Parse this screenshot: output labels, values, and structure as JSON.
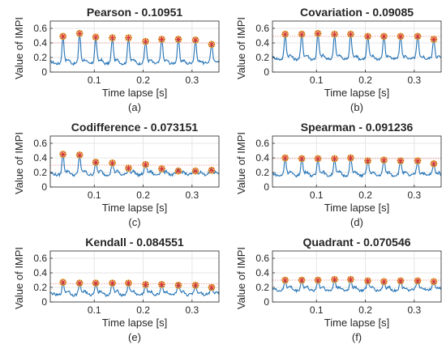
{
  "figure": {
    "colors": {
      "signal": "#2272b5",
      "peak_red": "#d9342b",
      "peak_yellow": "#e0b43a",
      "threshold": "#f2a2a2",
      "grid": "#e6e6e6",
      "axis": "#262626"
    }
  },
  "chart_data": [
    {
      "type": "line",
      "panel_label": "(a)",
      "title": "Pearson - 0.10951",
      "xlabel": "Time lapse [s]",
      "ylabel": "Value of IMPI",
      "xlim": [
        0.01,
        0.355
      ],
      "ylim": [
        0,
        0.7
      ],
      "grid": true,
      "xticks": [
        0.1,
        0.2,
        0.3
      ],
      "xtick_labels": [
        "0.1",
        "0.2",
        "0.3"
      ],
      "yticks": [
        0,
        0.2,
        0.4,
        0.6
      ],
      "ytick_labels": [
        "0",
        "0.2",
        "0.4",
        "0.6"
      ],
      "baseline": 0.13,
      "threshold": 0.4,
      "peaks": {
        "x": [
          0.036,
          0.07,
          0.103,
          0.137,
          0.17,
          0.205,
          0.238,
          0.272,
          0.307,
          0.34
        ],
        "y": [
          0.49,
          0.53,
          0.48,
          0.47,
          0.47,
          0.42,
          0.45,
          0.45,
          0.44,
          0.38
        ]
      }
    },
    {
      "type": "line",
      "panel_label": "(b)",
      "title": "Covariation - 0.09085",
      "xlabel": "Time lapse [s]",
      "ylabel": "Value of IMPI",
      "xlim": [
        0.01,
        0.355
      ],
      "ylim": [
        0,
        0.7
      ],
      "grid": true,
      "xticks": [
        0.1,
        0.2,
        0.3
      ],
      "xtick_labels": [
        "0.1",
        "0.2",
        "0.3"
      ],
      "yticks": [
        0,
        0.2,
        0.4,
        0.6
      ],
      "ytick_labels": [
        "0",
        "0.2",
        "0.4",
        "0.6"
      ],
      "baseline": 0.19,
      "threshold": 0.49,
      "peaks": {
        "x": [
          0.036,
          0.07,
          0.103,
          0.137,
          0.17,
          0.205,
          0.238,
          0.272,
          0.307,
          0.34
        ],
        "y": [
          0.52,
          0.52,
          0.53,
          0.52,
          0.52,
          0.49,
          0.49,
          0.49,
          0.49,
          0.45
        ]
      }
    },
    {
      "type": "line",
      "panel_label": "(c)",
      "title": "Codifference - 0.073151",
      "xlabel": "Time lapse [s]",
      "ylabel": "Value of IMPI",
      "xlim": [
        0.01,
        0.355
      ],
      "ylim": [
        0,
        0.7
      ],
      "grid": true,
      "xticks": [
        0.1,
        0.2,
        0.3
      ],
      "xtick_labels": [
        "0.1",
        "0.2",
        "0.3"
      ],
      "yticks": [
        0,
        0.2,
        0.4,
        0.6
      ],
      "ytick_labels": [
        "0",
        "0.2",
        "0.4",
        "0.6"
      ],
      "baseline": 0.18,
      "threshold": 0.3,
      "peaks": {
        "x": [
          0.036,
          0.07,
          0.103,
          0.137,
          0.17,
          0.205,
          0.238,
          0.272,
          0.307,
          0.34
        ],
        "y": [
          0.45,
          0.44,
          0.34,
          0.33,
          0.26,
          0.31,
          0.25,
          0.22,
          0.22,
          0.23
        ]
      }
    },
    {
      "type": "line",
      "panel_label": "(d)",
      "title": "Spearman - 0.091236",
      "xlabel": "Time lapse [s]",
      "ylabel": "Value of IMPI",
      "xlim": [
        0.01,
        0.355
      ],
      "ylim": [
        0,
        0.7
      ],
      "grid": true,
      "xticks": [
        0.1,
        0.2,
        0.3
      ],
      "xtick_labels": [
        "0.1",
        "0.2",
        "0.3"
      ],
      "yticks": [
        0,
        0.2,
        0.4,
        0.6
      ],
      "ytick_labels": [
        "0",
        "0.2",
        "0.4",
        "0.6"
      ],
      "baseline": 0.17,
      "threshold": 0.39,
      "peaks": {
        "x": [
          0.036,
          0.07,
          0.103,
          0.137,
          0.17,
          0.205,
          0.238,
          0.272,
          0.307,
          0.34
        ],
        "y": [
          0.4,
          0.39,
          0.39,
          0.39,
          0.4,
          0.36,
          0.37,
          0.36,
          0.36,
          0.32
        ]
      }
    },
    {
      "type": "line",
      "panel_label": "(e)",
      "title": "Kendall - 0.084551",
      "xlabel": "Time lapse [s]",
      "ylabel": "Value of IMPI",
      "xlim": [
        0.01,
        0.355
      ],
      "ylim": [
        0,
        0.7
      ],
      "grid": true,
      "xticks": [
        0.1,
        0.2,
        0.3
      ],
      "xtick_labels": [
        "0.1",
        "0.2",
        "0.3"
      ],
      "yticks": [
        0,
        0.2,
        0.4,
        0.6
      ],
      "ytick_labels": [
        "0",
        "0.2",
        "0.4",
        "0.6"
      ],
      "baseline": 0.11,
      "threshold": 0.25,
      "peaks": {
        "x": [
          0.036,
          0.07,
          0.103,
          0.137,
          0.17,
          0.205,
          0.238,
          0.272,
          0.307,
          0.34
        ],
        "y": [
          0.27,
          0.26,
          0.26,
          0.26,
          0.26,
          0.24,
          0.24,
          0.23,
          0.23,
          0.2
        ]
      }
    },
    {
      "type": "line",
      "panel_label": "(f)",
      "title": "Quadrant - 0.070546",
      "xlabel": "Time lapse [s]",
      "ylabel": "Value of IMPI",
      "xlim": [
        0.01,
        0.355
      ],
      "ylim": [
        0,
        0.7
      ],
      "grid": true,
      "xticks": [
        0.1,
        0.2,
        0.3
      ],
      "xtick_labels": [
        "0.1",
        "0.2",
        "0.3"
      ],
      "yticks": [
        0,
        0.2,
        0.4,
        0.6
      ],
      "ytick_labels": [
        "0",
        "0.2",
        "0.4",
        "0.6"
      ],
      "baseline": 0.17,
      "threshold": 0.3,
      "peaks": {
        "x": [
          0.036,
          0.07,
          0.103,
          0.137,
          0.17,
          0.205,
          0.238,
          0.272,
          0.307,
          0.34
        ],
        "y": [
          0.3,
          0.3,
          0.3,
          0.31,
          0.31,
          0.29,
          0.28,
          0.29,
          0.29,
          0.28
        ]
      }
    }
  ]
}
